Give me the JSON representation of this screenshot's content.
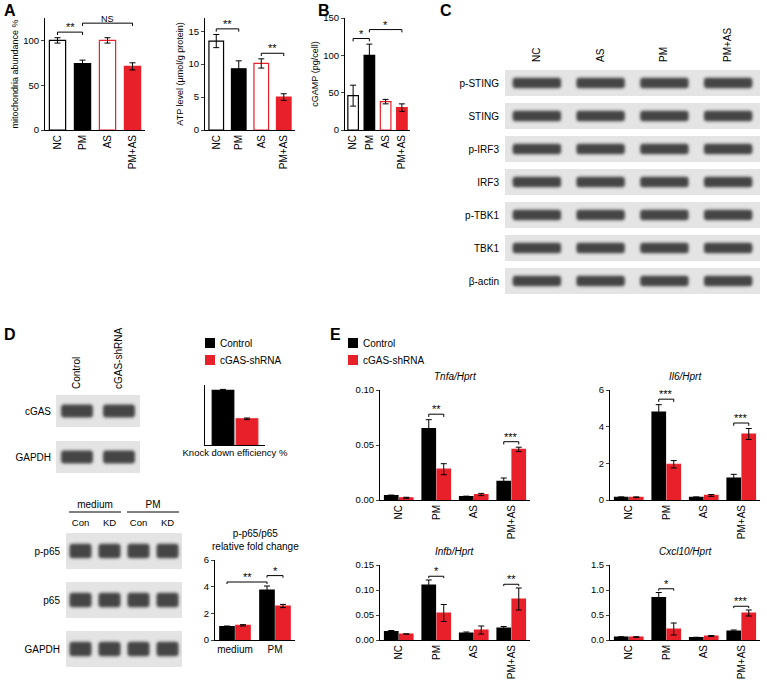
{
  "panel_labels": [
    "A",
    "B",
    "C",
    "D",
    "E"
  ],
  "chart_data": [
    {
      "type": "bar",
      "y_label": "mitochondria abundance %",
      "categories": [
        "NC",
        "PM",
        "AS",
        "PM+AS"
      ],
      "values": [
        100,
        74,
        100,
        71
      ],
      "errors": [
        3,
        4,
        3,
        4
      ],
      "colors": [
        "#ffffff",
        "#000000",
        "#ffffff",
        "#e8202a"
      ],
      "outline_colors": [
        "#000000",
        "#000000",
        "#e8202a",
        "#e8202a"
      ],
      "ylim": [
        0,
        125
      ],
      "yticks": [
        0,
        50,
        100
      ],
      "grid": false,
      "significance": [
        {
          "from": "NC",
          "to": "PM",
          "label": "**"
        },
        {
          "from": "PM",
          "to": "PM+AS",
          "label": "NS"
        }
      ]
    },
    {
      "type": "bar",
      "y_label": "ATP level (μmol/g protein)",
      "categories": [
        "NC",
        "PM",
        "AS",
        "PM+AS"
      ],
      "values": [
        13.5,
        9.3,
        10.1,
        5.0
      ],
      "errors": [
        1.0,
        1.2,
        0.7,
        0.5
      ],
      "colors": [
        "#ffffff",
        "#000000",
        "#ffffff",
        "#e8202a"
      ],
      "outline_colors": [
        "#000000",
        "#000000",
        "#e8202a",
        "#e8202a"
      ],
      "ylim": [
        0,
        17
      ],
      "yticks": [
        0,
        5,
        10,
        15
      ],
      "grid": false,
      "significance": [
        {
          "from": "NC",
          "to": "PM",
          "label": "**"
        },
        {
          "from": "AS",
          "to": "PM+AS",
          "label": "**"
        }
      ]
    },
    {
      "type": "bar",
      "y_label": "cGAMP (pg/cell)",
      "categories": [
        "NC",
        "PM",
        "AS",
        "PM+AS"
      ],
      "values": [
        46,
        100,
        38,
        30
      ],
      "errors": [
        14,
        15,
        3,
        5
      ],
      "colors": [
        "#ffffff",
        "#000000",
        "#ffffff",
        "#e8202a"
      ],
      "outline_colors": [
        "#000000",
        "#000000",
        "#e8202a",
        "#e8202a"
      ],
      "ylim": [
        0,
        150
      ],
      "yticks": [
        0,
        50,
        100,
        150
      ],
      "grid": false,
      "significance": [
        {
          "from": "NC",
          "to": "PM",
          "label": "*"
        },
        {
          "from": "PM",
          "to": "PM+AS",
          "label": "*"
        }
      ]
    },
    {
      "type": "bar",
      "x_label": "Knock down efficiency %",
      "categories": [
        null
      ],
      "series": [
        {
          "name": "Control",
          "color": "#000000",
          "values": [
            100
          ],
          "errors": [
            2
          ]
        },
        {
          "name": "cGAS-shRNA",
          "color": "#e8202a",
          "values": [
            48
          ],
          "errors": [
            1.5
          ]
        }
      ],
      "ylim": [
        0,
        110
      ],
      "tick_labels": false,
      "legend": "above",
      "grid": false
    },
    {
      "type": "bar",
      "title": "p-p65/p65",
      "subtitle": "relative fold change",
      "categories": [
        "medium",
        "PM"
      ],
      "series": [
        {
          "name": "Control",
          "color": "#000000",
          "values": [
            1.0,
            3.75
          ],
          "errors": [
            0.05,
            0.3
          ]
        },
        {
          "name": "cGAS-shRNA",
          "color": "#e8202a",
          "values": [
            1.1,
            2.55
          ],
          "errors": [
            0.05,
            0.12
          ]
        }
      ],
      "ylim": [
        0,
        6
      ],
      "yticks": [
        0,
        2,
        4,
        6
      ],
      "legend": "none",
      "grid": false,
      "significance": [
        {
          "from": {
            "category": "medium",
            "series": "Control"
          },
          "to": {
            "category": "PM",
            "series": "Control"
          },
          "label": "**"
        },
        {
          "from": {
            "category": "PM",
            "series": "Control"
          },
          "to": {
            "category": "PM",
            "series": "cGAS-shRNA"
          },
          "label": "*"
        }
      ]
    },
    {
      "type": "bar",
      "title": "Tnfa/Hprt",
      "categories": [
        "NC",
        "PM",
        "AS",
        "PM+AS"
      ],
      "series": [
        {
          "name": "Control",
          "color": "#000000",
          "values": [
            0.004,
            0.065,
            0.003,
            0.017
          ],
          "errors": [
            0.0005,
            0.008,
            0.0005,
            0.003
          ]
        },
        {
          "name": "cGAS-shRNA",
          "color": "#e8202a",
          "values": [
            0.002,
            0.028,
            0.005,
            0.046
          ],
          "errors": [
            0.0005,
            0.005,
            0.001,
            0.002
          ]
        }
      ],
      "ylim": [
        0,
        0.1
      ],
      "yticks": [
        {
          "value": 0,
          "label": "0.00"
        },
        {
          "value": 0.05,
          "label": "0.05"
        },
        {
          "value": 0.1,
          "label": "0.10"
        }
      ],
      "legend": "above",
      "grid": false,
      "significance": [
        {
          "from": {
            "category": "PM",
            "series": "Control"
          },
          "to": {
            "category": "PM",
            "series": "cGAS-shRNA"
          },
          "label": "**"
        },
        {
          "from": {
            "category": "PM+AS",
            "series": "Control"
          },
          "to": {
            "category": "PM+AS",
            "series": "cGAS-shRNA"
          },
          "label": "***"
        }
      ]
    },
    {
      "type": "bar",
      "title": "Il6/Hprt",
      "categories": [
        "NC",
        "PM",
        "AS",
        "PM+AS"
      ],
      "series": [
        {
          "name": "Control",
          "color": "#000000",
          "values": [
            0.15,
            4.8,
            0.15,
            1.2
          ],
          "errors": [
            0.02,
            0.4,
            0.02,
            0.2
          ]
        },
        {
          "name": "cGAS-shRNA",
          "color": "#e8202a",
          "values": [
            0.15,
            1.95,
            0.25,
            3.6
          ],
          "errors": [
            0.02,
            0.2,
            0.05,
            0.3
          ]
        }
      ],
      "ylim": [
        0,
        6
      ],
      "yticks": [
        0,
        2,
        4,
        6
      ],
      "legend": "none",
      "grid": false,
      "significance": [
        {
          "from": {
            "category": "PM",
            "series": "Control"
          },
          "to": {
            "category": "PM",
            "series": "cGAS-shRNA"
          },
          "label": "***"
        },
        {
          "from": {
            "category": "PM+AS",
            "series": "Control"
          },
          "to": {
            "category": "PM+AS",
            "series": "cGAS-shRNA"
          },
          "label": "***"
        }
      ]
    },
    {
      "type": "bar",
      "title": "Infb/Hprt",
      "categories": [
        "NC",
        "PM",
        "AS",
        "PM+AS"
      ],
      "series": [
        {
          "name": "Control",
          "color": "#000000",
          "values": [
            0.017,
            0.11,
            0.014,
            0.024
          ],
          "errors": [
            0.002,
            0.01,
            0.002,
            0.003
          ]
        },
        {
          "name": "cGAS-shRNA",
          "color": "#e8202a",
          "values": [
            0.012,
            0.054,
            0.02,
            0.082
          ],
          "errors": [
            0,
            0.017,
            0.008,
            0.022
          ]
        }
      ],
      "ylim": [
        0,
        0.15
      ],
      "yticks": [
        {
          "value": 0,
          "label": "0.00"
        },
        {
          "value": 0.05,
          "label": "0.05"
        },
        {
          "value": 0.1,
          "label": "0.10"
        },
        {
          "value": 0.15,
          "label": "0.15"
        }
      ],
      "legend": "none",
      "grid": false,
      "significance": [
        {
          "from": {
            "category": "PM",
            "series": "Control"
          },
          "to": {
            "category": "PM",
            "series": "cGAS-shRNA"
          },
          "label": "*"
        },
        {
          "from": {
            "category": "PM+AS",
            "series": "Control"
          },
          "to": {
            "category": "PM+AS",
            "series": "cGAS-shRNA"
          },
          "label": "**"
        }
      ]
    },
    {
      "type": "bar",
      "title": "Cxcl10/Hprt",
      "categories": [
        "NC",
        "PM",
        "AS",
        "PM+AS"
      ],
      "series": [
        {
          "name": "Control",
          "color": "#000000",
          "values": [
            0.06,
            0.85,
            0.05,
            0.18
          ],
          "errors": [
            0.005,
            0.1,
            0.005,
            0.02
          ]
        },
        {
          "name": "cGAS-shRNA",
          "color": "#e8202a",
          "values": [
            0.06,
            0.22,
            0.08,
            0.54
          ],
          "errors": [
            0.005,
            0.12,
            0.01,
            0.06
          ]
        }
      ],
      "ylim": [
        0,
        1.5
      ],
      "yticks": [
        {
          "value": 0,
          "label": "0.0"
        },
        {
          "value": 0.5,
          "label": "0.5"
        },
        {
          "value": 1,
          "label": "1.0"
        },
        {
          "value": 1.5,
          "label": "1.5"
        }
      ],
      "legend": "none",
      "grid": false,
      "significance": [
        {
          "from": {
            "category": "PM",
            "series": "Control"
          },
          "to": {
            "category": "PM",
            "series": "cGAS-shRNA"
          },
          "label": "*"
        },
        {
          "from": {
            "category": "PM+AS",
            "series": "Control"
          },
          "to": {
            "category": "PM+AS",
            "series": "cGAS-shRNA"
          },
          "label": "***"
        }
      ]
    }
  ],
  "blots": [
    {
      "panel": "C",
      "columns": [
        "NC",
        "AS",
        "PM",
        "PM+AS"
      ],
      "rows": [
        "p-STING",
        "STING",
        "p-IRF3",
        "IRF3",
        "p-TBK1",
        "TBK1",
        "β-actin"
      ]
    },
    {
      "panel": "D",
      "columns": [
        "Control",
        "cGAS-shRNA"
      ],
      "rows": [
        "cGAS",
        "GAPDH"
      ]
    },
    {
      "panel": "D",
      "groups": [
        {
          "label": "medium",
          "columns": [
            "Con",
            "KD"
          ]
        },
        {
          "label": "PM",
          "columns": [
            "Con",
            "KD"
          ]
        }
      ],
      "rows": [
        "p-p65",
        "p65",
        "GAPDH"
      ]
    }
  ]
}
